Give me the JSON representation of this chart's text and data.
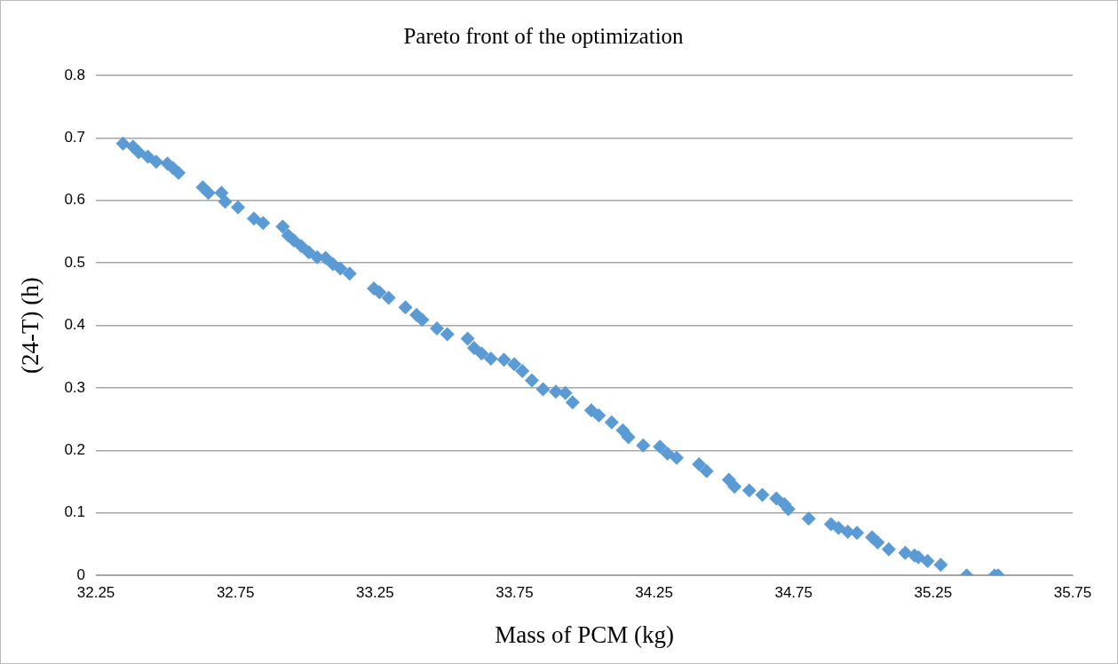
{
  "chart_data": {
    "type": "scatter",
    "title": "Pareto front of the optimization",
    "xlabel": "Mass of PCM (kg)",
    "ylabel": "(24-T) (h)",
    "x": [
      32.347,
      32.383,
      32.403,
      32.436,
      32.466,
      32.506,
      32.526,
      32.546,
      32.633,
      32.653,
      32.7,
      32.713,
      32.759,
      32.816,
      32.849,
      32.919,
      32.939,
      32.959,
      32.986,
      33.013,
      33.043,
      33.073,
      33.099,
      33.126,
      33.159,
      33.246,
      33.266,
      33.299,
      33.359,
      33.399,
      33.419,
      33.472,
      33.509,
      33.582,
      33.605,
      33.632,
      33.665,
      33.712,
      33.749,
      33.778,
      33.812,
      33.852,
      33.898,
      33.932,
      33.958,
      34.025,
      34.052,
      34.098,
      34.138,
      34.158,
      34.211,
      34.271,
      34.298,
      34.331,
      34.411,
      34.438,
      34.518,
      34.538,
      34.591,
      34.638,
      34.688,
      34.717,
      34.731,
      34.804,
      34.884,
      34.911,
      34.944,
      34.977,
      35.031,
      35.051,
      35.091,
      35.15,
      35.183,
      35.197,
      35.23,
      35.277,
      35.37,
      35.47,
      35.483
    ],
    "series": [
      {
        "color": "#5b9bd5",
        "values": [
          0.691,
          0.686,
          0.677,
          0.67,
          0.662,
          0.659,
          0.652,
          0.644,
          0.621,
          0.612,
          0.612,
          0.598,
          0.589,
          0.571,
          0.564,
          0.558,
          0.544,
          0.536,
          0.527,
          0.517,
          0.509,
          0.508,
          0.498,
          0.491,
          0.483,
          0.459,
          0.453,
          0.444,
          0.429,
          0.417,
          0.409,
          0.395,
          0.386,
          0.379,
          0.364,
          0.355,
          0.347,
          0.345,
          0.338,
          0.327,
          0.312,
          0.298,
          0.294,
          0.292,
          0.277,
          0.264,
          0.256,
          0.245,
          0.232,
          0.221,
          0.208,
          0.206,
          0.195,
          0.188,
          0.178,
          0.167,
          0.153,
          0.142,
          0.136,
          0.129,
          0.123,
          0.114,
          0.106,
          0.091,
          0.082,
          0.076,
          0.07,
          0.068,
          0.061,
          0.053,
          0.042,
          0.036,
          0.032,
          0.029,
          0.023,
          0.017,
          0,
          0,
          0
        ]
      }
    ],
    "xlim": [
      32.25,
      35.75
    ],
    "xticks": [
      32.25,
      32.75,
      33.25,
      33.75,
      34.25,
      34.75,
      35.25,
      35.75
    ],
    "ylim": [
      0,
      0.8
    ],
    "yticks": [
      0,
      0.1,
      0.2,
      0.3,
      0.4,
      0.5,
      0.6,
      0.7,
      0.8
    ],
    "grid": "y",
    "legend": false,
    "marker": "diamond"
  }
}
